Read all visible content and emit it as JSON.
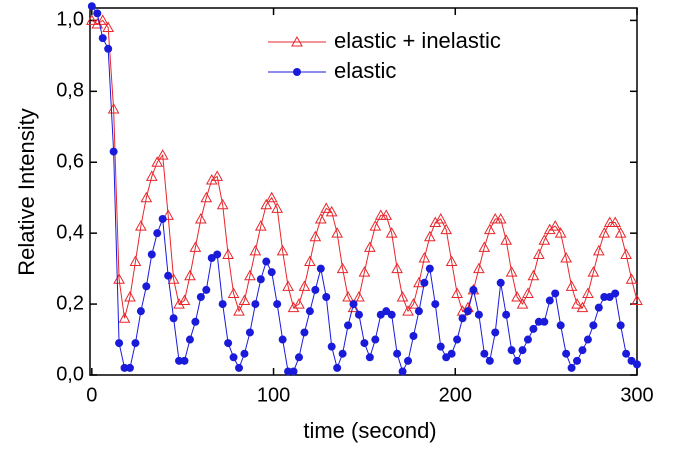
{
  "chart_data": {
    "type": "line",
    "x_label": "time (second)",
    "y_label": "Relative Intensity",
    "xlim": [
      -1,
      300
    ],
    "ylim": [
      0,
      1.035
    ],
    "xticks": [
      0,
      100,
      200,
      300
    ],
    "yticks": [
      {
        "value": 0,
        "label": "0,0"
      },
      {
        "value": 0.2,
        "label": "0,2"
      },
      {
        "value": 0.4,
        "label": "0,4"
      },
      {
        "value": 0.6,
        "label": "0,6"
      },
      {
        "value": 0.8,
        "label": "0,8"
      },
      {
        "value": 1.0,
        "label": "1,0"
      }
    ],
    "x": [
      0,
      3,
      6,
      9,
      12,
      15,
      18,
      21,
      24,
      27,
      30,
      33,
      36,
      39,
      42,
      45,
      48,
      51,
      54,
      57,
      60,
      63,
      66,
      69,
      72,
      75,
      78,
      81,
      84,
      87,
      90,
      93,
      96,
      99,
      102,
      105,
      108,
      111,
      114,
      117,
      120,
      123,
      126,
      129,
      132,
      135,
      138,
      141,
      144,
      147,
      150,
      153,
      156,
      159,
      162,
      165,
      168,
      171,
      174,
      177,
      180,
      183,
      186,
      189,
      192,
      195,
      198,
      201,
      204,
      207,
      210,
      213,
      216,
      219,
      222,
      225,
      228,
      231,
      234,
      237,
      240,
      243,
      246,
      249,
      252,
      255,
      258,
      261,
      264,
      267,
      270,
      273,
      276,
      279,
      282,
      285,
      288,
      291,
      294,
      297,
      300
    ],
    "series": [
      {
        "name": "elastic + inelastic",
        "color": "#e8262b",
        "marker": "triangle",
        "values": [
          1.0,
          0.99,
          1.0,
          0.98,
          0.75,
          0.27,
          0.16,
          0.22,
          0.32,
          0.42,
          0.5,
          0.56,
          0.6,
          0.62,
          0.45,
          0.27,
          0.2,
          0.21,
          0.28,
          0.36,
          0.44,
          0.5,
          0.55,
          0.56,
          0.48,
          0.34,
          0.23,
          0.18,
          0.21,
          0.28,
          0.35,
          0.42,
          0.48,
          0.5,
          0.47,
          0.35,
          0.25,
          0.19,
          0.2,
          0.25,
          0.32,
          0.39,
          0.44,
          0.47,
          0.46,
          0.4,
          0.3,
          0.22,
          0.19,
          0.22,
          0.29,
          0.36,
          0.42,
          0.45,
          0.45,
          0.4,
          0.3,
          0.22,
          0.18,
          0.2,
          0.26,
          0.33,
          0.39,
          0.43,
          0.44,
          0.41,
          0.32,
          0.23,
          0.18,
          0.19,
          0.24,
          0.3,
          0.36,
          0.41,
          0.44,
          0.44,
          0.38,
          0.29,
          0.22,
          0.2,
          0.23,
          0.28,
          0.34,
          0.38,
          0.41,
          0.42,
          0.4,
          0.33,
          0.25,
          0.2,
          0.19,
          0.23,
          0.29,
          0.35,
          0.4,
          0.43,
          0.43,
          0.4,
          0.34,
          0.27,
          0.21
        ]
      },
      {
        "name": "elastic",
        "color": "#1a1adb",
        "marker": "circle",
        "values": [
          1.04,
          1.02,
          0.95,
          0.92,
          0.63,
          0.09,
          0.02,
          0.02,
          0.09,
          0.18,
          0.25,
          0.34,
          0.4,
          0.44,
          0.28,
          0.16,
          0.04,
          0.04,
          0.1,
          0.15,
          0.22,
          0.24,
          0.33,
          0.34,
          0.2,
          0.09,
          0.05,
          0.02,
          0.06,
          0.12,
          0.2,
          0.27,
          0.32,
          0.29,
          0.2,
          0.1,
          0.01,
          0.01,
          0.05,
          0.12,
          0.18,
          0.24,
          0.3,
          0.22,
          0.08,
          0.02,
          0.06,
          0.14,
          0.2,
          0.17,
          0.09,
          0.05,
          0.1,
          0.17,
          0.18,
          0.17,
          0.06,
          0.01,
          0.04,
          0.11,
          0.18,
          0.26,
          0.3,
          0.2,
          0.08,
          0.05,
          0.06,
          0.1,
          0.16,
          0.18,
          0.24,
          0.17,
          0.06,
          0.04,
          0.12,
          0.26,
          0.17,
          0.07,
          0.04,
          0.07,
          0.1,
          0.13,
          0.15,
          0.15,
          0.21,
          0.23,
          0.14,
          0.06,
          0.02,
          0.04,
          0.07,
          0.1,
          0.14,
          0.19,
          0.22,
          0.22,
          0.23,
          0.14,
          0.06,
          0.04,
          0.03
        ]
      }
    ]
  }
}
